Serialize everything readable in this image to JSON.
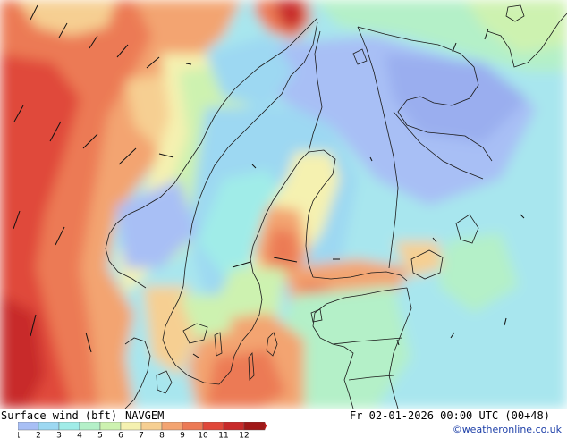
{
  "footer": {
    "title": "Surface wind (bft)",
    "model": "NAVGEM",
    "runtime": "Fr 02-01-2026 00:00 UTC (00+48)",
    "credit": "©weatheronline.co.uk"
  },
  "legend": {
    "ticks": [
      "1",
      "2",
      "3",
      "4",
      "5",
      "6",
      "7",
      "8",
      "9",
      "10",
      "11",
      "12"
    ],
    "colors": [
      "#a8bff5",
      "#9dd8f2",
      "#a0ece8",
      "#b4f0c8",
      "#cdf2b0",
      "#f5f1b0",
      "#f6cf92",
      "#f3a471",
      "#ec7a55",
      "#e0483a",
      "#c82a2a",
      "#a01818"
    ],
    "arrow_color": "#c21515"
  },
  "map": {
    "land_outline_color": "#1b1b1b",
    "arrow_color": "#111111"
  }
}
